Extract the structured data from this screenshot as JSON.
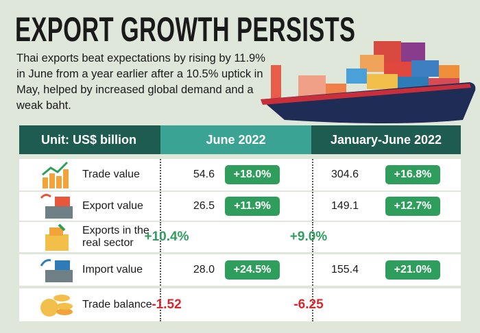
{
  "header": {
    "title": "EXPORT GROWTH PERSISTS",
    "subtitle": "Thai exports beat expectations by rising by 11.9% in June from a year earlier after a 10.5% uptick in May, helped by increased global demand and a weak baht."
  },
  "table": {
    "columns": [
      "Unit: US$ billion",
      "June 2022",
      "January-June 2022"
    ],
    "rows": [
      {
        "label": "Trade value",
        "june": {
          "value": "54.6",
          "change": "+18.0%"
        },
        "ytd": {
          "value": "304.6",
          "change": "+16.8%"
        }
      },
      {
        "label": "Export value",
        "june": {
          "value": "26.5",
          "change": "+11.9%"
        },
        "ytd": {
          "value": "149.1",
          "change": "+12.7%"
        }
      },
      {
        "label": "Exports in the real sector",
        "june": {
          "change": "+10.4%"
        },
        "ytd": {
          "change": "+9.0%"
        }
      },
      {
        "label": "Import value",
        "june": {
          "value": "28.0",
          "change": "+24.5%"
        },
        "ytd": {
          "value": "155.4",
          "change": "+21.0%"
        }
      },
      {
        "label": "Trade balance",
        "june": {
          "value": "-1.52"
        },
        "ytd": {
          "value": "-6.25"
        }
      }
    ]
  }
}
